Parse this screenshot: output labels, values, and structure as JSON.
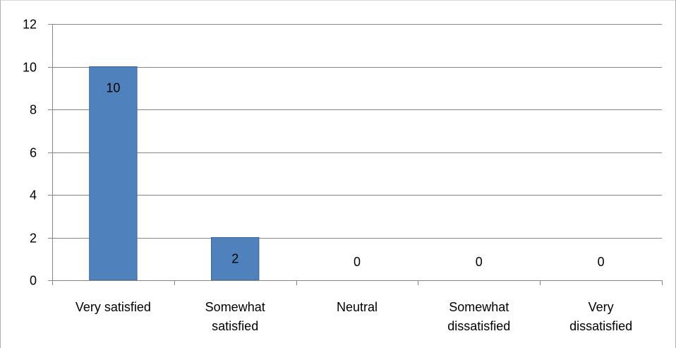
{
  "chart_data": {
    "type": "bar",
    "title": "",
    "xlabel": "",
    "ylabel": "",
    "categories": [
      "Very satisfied",
      "Somewhat satisfied",
      "Neutral",
      "Somewhat dissatisfied",
      "Very dissatisfied"
    ],
    "category_lines": [
      [
        "Very satisfied"
      ],
      [
        "Somewhat",
        "satisfied"
      ],
      [
        "Neutral"
      ],
      [
        "Somewhat",
        "dissatisfied"
      ],
      [
        "Very",
        "dissatisfied"
      ]
    ],
    "values": [
      10,
      2,
      0,
      0,
      0
    ],
    "data_labels": [
      "10",
      "2",
      "0",
      "0",
      "0"
    ],
    "ylim": [
      0,
      12
    ],
    "yticks": [
      0,
      2,
      4,
      6,
      8,
      10,
      12
    ],
    "ytick_labels": [
      "0",
      "2",
      "4",
      "6",
      "8",
      "10",
      "12"
    ],
    "grid": true,
    "legend": "none",
    "bar_color": "#4f81bd",
    "bar_edge_color": "#3c6596",
    "grid_color": "#868686"
  }
}
